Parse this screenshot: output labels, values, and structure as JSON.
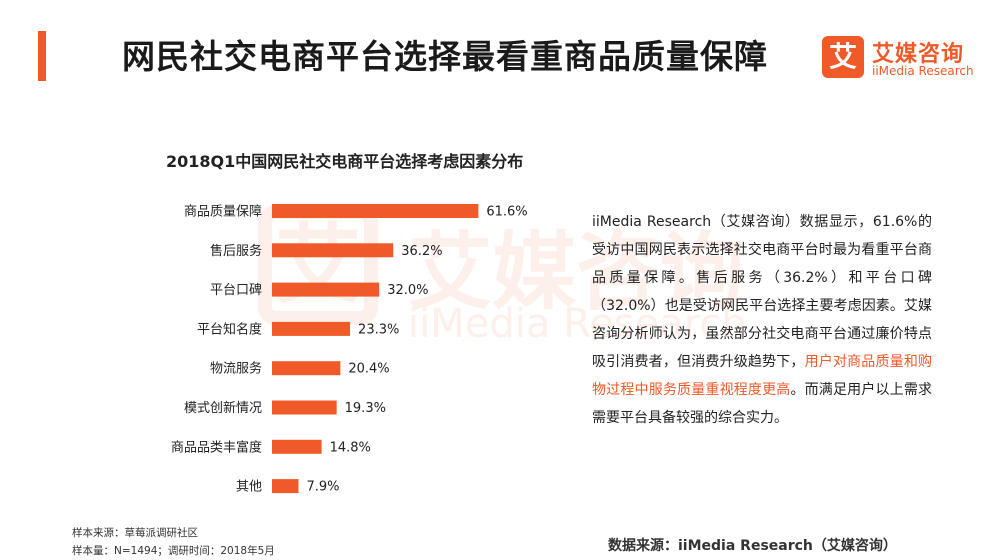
{
  "header": {
    "title": "网民社交电商平台选择最看重商品质量保障",
    "accent_color": "#f05a28"
  },
  "logo": {
    "mark": "艾",
    "name_cn": "艾媒咨询",
    "name_en": "iiMedia Research"
  },
  "watermark": {
    "mark": "艾",
    "name_cn": "艾媒咨询",
    "name_en": "iiMedia Research"
  },
  "chart_data": {
    "type": "bar",
    "orientation": "horizontal",
    "title": "2018Q1中国网民社交电商平台选择考虑因素分布",
    "categories": [
      "商品质量保障",
      "售后服务",
      "平台口碑",
      "平台知名度",
      "物流服务",
      "模式创新情况",
      "商品品类丰富度",
      "其他"
    ],
    "values": [
      61.6,
      36.2,
      32.0,
      23.3,
      20.4,
      19.3,
      14.8,
      7.9
    ],
    "value_labels": [
      "61.6%",
      "36.2%",
      "32.0%",
      "23.3%",
      "20.4%",
      "19.3%",
      "14.8%",
      "7.9%"
    ],
    "xlim": [
      0,
      100
    ],
    "bar_color": "#f05a28",
    "grid": false,
    "xlabel": "",
    "ylabel": ""
  },
  "description": {
    "part1": "iiMedia Research（艾媒咨询）数据显示，61.6%的受访中国网民表示选择社交电商平台时最为看重平台商品质量保障。售后服务（36.2%）和平台口碑（32.0%）也是受访网民平台选择主要考虑因素。艾媒咨询分析师认为，虽然部分社交电商平台通过廉价特点吸引消费者，但消费升级趋势下，",
    "highlight": "用户对商品质量和购物过程中服务质量重视程度更高",
    "part2": "。而满足用户以上需求需要平台具备较强的综合实力。"
  },
  "notes": {
    "source_sample": "样本来源：草莓派调研社区",
    "sample_info": "样本量：N=1494；调研时间：2018年5月"
  },
  "source": "数据来源：iiMedia Research（艾媒咨询）"
}
